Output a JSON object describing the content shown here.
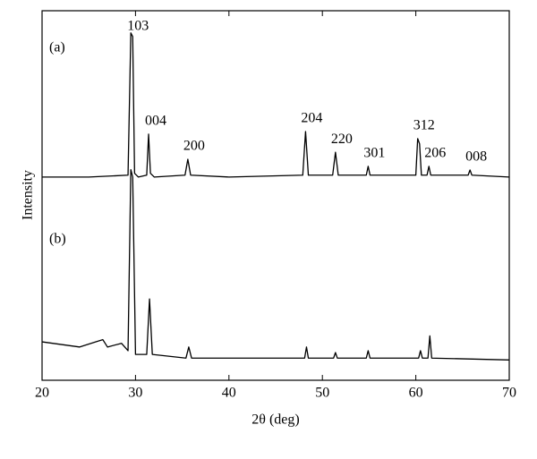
{
  "chart_data": {
    "type": "line",
    "xlabel": "2θ (deg)",
    "ylabel": "Intensity",
    "xlim": [
      20,
      70
    ],
    "xticks": [
      20,
      30,
      40,
      50,
      60,
      70
    ],
    "ylim": [
      0,
      100
    ],
    "series": [
      {
        "name": "(a)",
        "color": "#000000",
        "x": [
          20,
          25,
          29.2,
          29.5,
          29.7,
          29.9,
          30.3,
          31.2,
          31.4,
          31.6,
          32,
          35.3,
          35.6,
          35.9,
          40,
          47.9,
          48.2,
          48.5,
          51.1,
          51.4,
          51.7,
          54.7,
          54.9,
          55.1,
          60,
          60.2,
          60.4,
          60.6,
          61.2,
          61.4,
          61.6,
          65.6,
          65.8,
          66,
          70
        ],
        "values": [
          55,
          55,
          55.5,
          94,
          93,
          56,
          55,
          55.5,
          66.6,
          56,
          55,
          55.5,
          59.8,
          55.5,
          55,
          55.5,
          67.3,
          55.5,
          55.5,
          61.7,
          55.5,
          55.5,
          57.9,
          55.5,
          55.5,
          65.4,
          64,
          55.5,
          55.5,
          57.9,
          55.5,
          55.5,
          56.9,
          55.5,
          55
        ]
      },
      {
        "name": "(b)",
        "color": "#000000",
        "x": [
          20,
          24,
          26.5,
          27,
          28.5,
          29.2,
          29.5,
          29.7,
          30,
          31.2,
          31.5,
          31.8,
          35.4,
          35.7,
          36,
          40,
          48.1,
          48.3,
          48.5,
          51.2,
          51.4,
          51.6,
          54.7,
          54.9,
          55.1,
          60.3,
          60.5,
          60.7,
          61.3,
          61.5,
          61.7,
          70
        ],
        "values": [
          10.4,
          9,
          11,
          9,
          10,
          8,
          57,
          55,
          7,
          7,
          22,
          7,
          6,
          9,
          6,
          6,
          6,
          9,
          6,
          6,
          7.5,
          6,
          6,
          8,
          6,
          6,
          8,
          6,
          6,
          12,
          6,
          5.5
        ]
      }
    ],
    "annotations": [
      {
        "text": "103",
        "x": 29.6
      },
      {
        "text": "004",
        "x": 31.5
      },
      {
        "text": "200",
        "x": 35.6
      },
      {
        "text": "204",
        "x": 48.2
      },
      {
        "text": "220",
        "x": 51.4
      },
      {
        "text": "301",
        "x": 54.9
      },
      {
        "text": "312",
        "x": 60.2
      },
      {
        "text": "206",
        "x": 61.4
      },
      {
        "text": "008",
        "x": 65.8
      }
    ]
  }
}
